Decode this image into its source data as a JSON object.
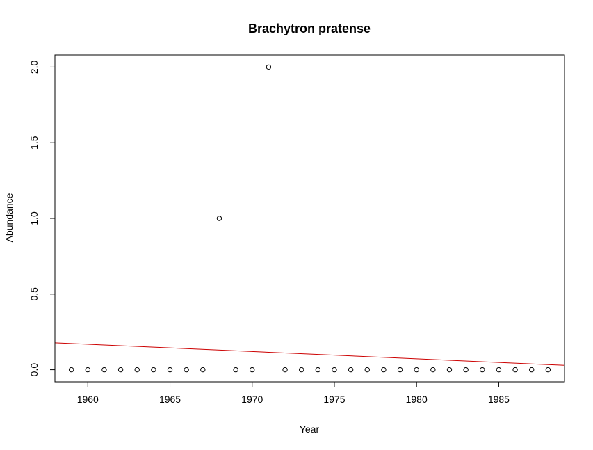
{
  "chart_data": {
    "type": "scatter",
    "title": "Brachytron pratense",
    "xlabel": "Year",
    "ylabel": "Abundance",
    "xlim": [
      1958,
      1989
    ],
    "ylim": [
      -0.08,
      2.08
    ],
    "x_ticks": [
      1960,
      1965,
      1970,
      1975,
      1980,
      1985
    ],
    "y_ticks": [
      0.0,
      0.5,
      1.0,
      1.5,
      2.0
    ],
    "x_tick_labels": [
      "1960",
      "1965",
      "1970",
      "1975",
      "1980",
      "1985"
    ],
    "y_tick_labels": [
      "0.0",
      "0.5",
      "1.0",
      "1.5",
      "2.0"
    ],
    "grid": false,
    "series": [
      {
        "marker": "open-circle",
        "color": "#000000",
        "x": [
          1959,
          1960,
          1961,
          1962,
          1963,
          1964,
          1965,
          1966,
          1967,
          1968,
          1969,
          1970,
          1971,
          1972,
          1973,
          1974,
          1975,
          1976,
          1977,
          1978,
          1979,
          1980,
          1981,
          1982,
          1983,
          1984,
          1985,
          1986,
          1987,
          1988
        ],
        "y": [
          0,
          0,
          0,
          0,
          0,
          0,
          0,
          0,
          0,
          1,
          0,
          0,
          2,
          0,
          0,
          0,
          0,
          0,
          0,
          0,
          0,
          0,
          0,
          0,
          0,
          0,
          0,
          0,
          0,
          0
        ]
      }
    ],
    "trend_line": {
      "color": "#cc0000",
      "x": [
        1958,
        1989
      ],
      "y": [
        0.178,
        0.029
      ]
    }
  }
}
